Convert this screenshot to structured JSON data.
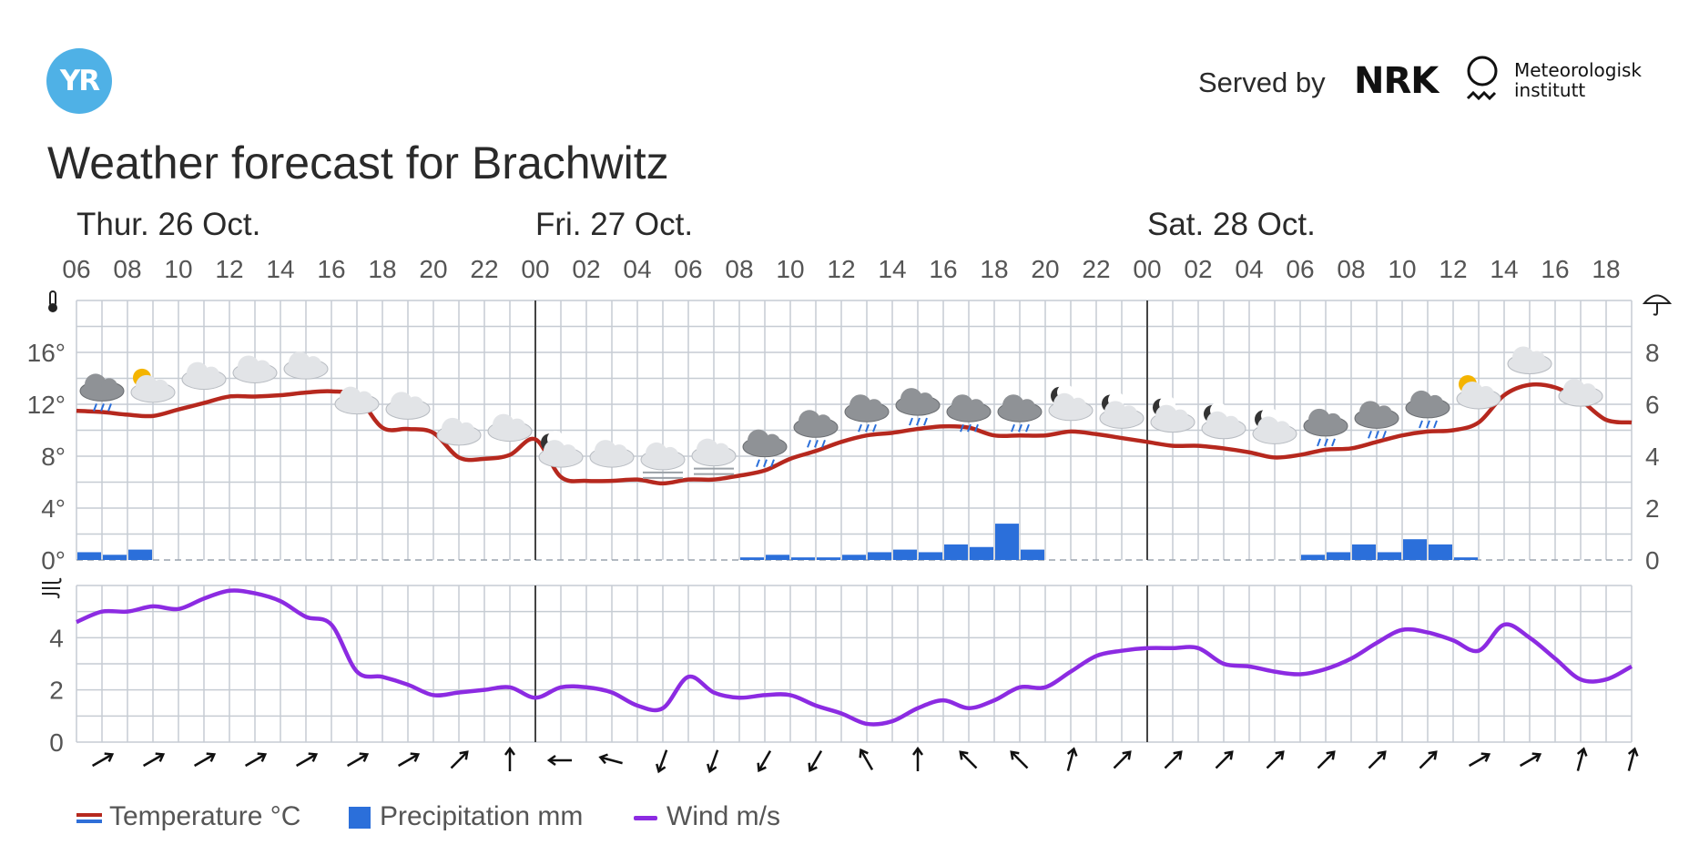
{
  "header": {
    "logo_text": "YR",
    "served_by": "Served by",
    "nrk_logo": "NRK",
    "met_line1": "Meteorologisk",
    "met_line2": "institutt"
  },
  "title": "Weather forecast for Brachwitz",
  "legend": {
    "temperature": "Temperature °C",
    "precipitation": "Precipitation mm",
    "wind": "Wind m/s"
  },
  "colors": {
    "temperature": "#b6281e",
    "precipitation": "#2b6fda",
    "wind": "#8c2be2",
    "grid": "#c6ccd3",
    "day_divider": "#444444"
  },
  "chart_data": {
    "type": "line",
    "days": [
      {
        "label": "Thur. 26 Oct.",
        "start_index": 0
      },
      {
        "label": "Fri. 27 Oct.",
        "start_index": 18
      },
      {
        "label": "Sat. 28 Oct.",
        "start_index": 42
      }
    ],
    "x_tick_labels": [
      "06",
      "08",
      "10",
      "12",
      "14",
      "16",
      "18",
      "20",
      "22",
      "00",
      "02",
      "04",
      "06",
      "08",
      "10",
      "12",
      "14",
      "16",
      "18",
      "20",
      "22",
      "00",
      "02",
      "04",
      "06",
      "08",
      "10",
      "12",
      "14",
      "16",
      "18"
    ],
    "hours": [
      "06",
      "07",
      "08",
      "09",
      "10",
      "11",
      "12",
      "13",
      "14",
      "15",
      "16",
      "17",
      "18",
      "19",
      "20",
      "21",
      "22",
      "23",
      "00",
      "01",
      "02",
      "03",
      "04",
      "05",
      "06",
      "07",
      "08",
      "09",
      "10",
      "11",
      "12",
      "13",
      "14",
      "15",
      "16",
      "17",
      "18",
      "19",
      "20",
      "21",
      "22",
      "23",
      "00",
      "01",
      "02",
      "03",
      "04",
      "05",
      "06",
      "07",
      "08",
      "09",
      "10",
      "11",
      "12",
      "13",
      "14",
      "15",
      "16",
      "17",
      "18",
      "19"
    ],
    "temperature_axis": {
      "label_icon": "thermometer-icon",
      "ticks": [
        "0°",
        "4°",
        "8°",
        "12°",
        "16°"
      ],
      "range": [
        0,
        20
      ]
    },
    "precipitation_axis": {
      "label_icon": "umbrella-icon",
      "ticks": [
        "0",
        "2",
        "4",
        "6",
        "8"
      ],
      "range": [
        0,
        10
      ]
    },
    "wind_axis": {
      "label_icon": "wind-icon",
      "ticks": [
        "0",
        "2",
        "4"
      ],
      "range": [
        0,
        6
      ]
    },
    "series": [
      {
        "name": "Temperature °C",
        "unit": "°C",
        "values": [
          11.5,
          11.4,
          11.2,
          11.1,
          11.6,
          12.1,
          12.6,
          12.6,
          12.7,
          12.9,
          13.0,
          12.6,
          10.2,
          10.1,
          9.8,
          7.9,
          7.8,
          8.1,
          9.3,
          6.4,
          6.1,
          6.1,
          6.2,
          5.9,
          6.2,
          6.2,
          6.5,
          6.9,
          7.8,
          8.4,
          9.1,
          9.6,
          9.8,
          10.1,
          10.3,
          10.2,
          9.6,
          9.6,
          9.6,
          9.9,
          9.7,
          9.4,
          9.1,
          8.8,
          8.8,
          8.6,
          8.3,
          7.9,
          8.1,
          8.5,
          8.6,
          9.1,
          9.6,
          9.9,
          10.0,
          10.6,
          12.7,
          13.5,
          13.3,
          12.3,
          10.8,
          10.6
        ]
      },
      {
        "name": "Precipitation mm",
        "unit": "mm",
        "values": [
          0.3,
          0.2,
          0.4,
          0,
          0,
          0,
          0,
          0,
          0,
          0,
          0,
          0,
          0,
          0,
          0,
          0,
          0,
          0,
          0,
          0,
          0,
          0,
          0,
          0,
          0,
          0,
          0.1,
          0.2,
          0.1,
          0.1,
          0.2,
          0.3,
          0.4,
          0.3,
          0.6,
          0.5,
          1.4,
          0.4,
          0,
          0,
          0,
          0,
          0,
          0,
          0,
          0,
          0,
          0,
          0.2,
          0.3,
          0.6,
          0.3,
          0.8,
          0.6,
          0.1,
          0,
          0,
          0,
          0,
          0,
          0,
          0
        ]
      },
      {
        "name": "Wind m/s",
        "unit": "m/s",
        "values": [
          4.6,
          5.0,
          5.0,
          5.2,
          5.1,
          5.5,
          5.8,
          5.7,
          5.4,
          4.8,
          4.5,
          2.7,
          2.5,
          2.2,
          1.8,
          1.9,
          2.0,
          2.1,
          1.7,
          2.1,
          2.1,
          1.9,
          1.4,
          1.3,
          2.5,
          1.9,
          1.7,
          1.8,
          1.8,
          1.4,
          1.1,
          0.7,
          0.8,
          1.3,
          1.6,
          1.3,
          1.6,
          2.1,
          2.1,
          2.7,
          3.3,
          3.5,
          3.6,
          3.6,
          3.6,
          3.0,
          2.9,
          2.7,
          2.6,
          2.8,
          3.2,
          3.8,
          4.3,
          4.2,
          3.9,
          3.5,
          4.5,
          4.0,
          3.2,
          2.4,
          2.4,
          2.9
        ]
      }
    ],
    "weather_symbols": [
      "cloud-rain",
      "partly-cloudy-day",
      "cloud",
      "cloud",
      "cloud",
      "cloud",
      "cloud",
      "cloud",
      "cloud",
      "partly-cloudy-night",
      "cloud",
      "fog",
      "fog",
      "cloud-rain",
      "cloud-rain",
      "cloud-rain",
      "cloud-rain",
      "cloud-rain",
      "cloud-rain",
      "partly-cloudy-night",
      "partly-cloudy-night",
      "partly-cloudy-night",
      "partly-cloudy-night",
      "partly-cloudy-night",
      "cloud-rain",
      "cloud-rain",
      "cloud-rain",
      "partly-cloudy-day",
      "cloud",
      "cloud"
    ],
    "wind_directions_deg": [
      60,
      60,
      60,
      60,
      60,
      60,
      60,
      45,
      0,
      270,
      285,
      200,
      200,
      210,
      210,
      330,
      0,
      315,
      315,
      15,
      45,
      45,
      45,
      45,
      45,
      45,
      45,
      60,
      60,
      15,
      15
    ],
    "grid": true,
    "legend_position": "bottom-left"
  }
}
